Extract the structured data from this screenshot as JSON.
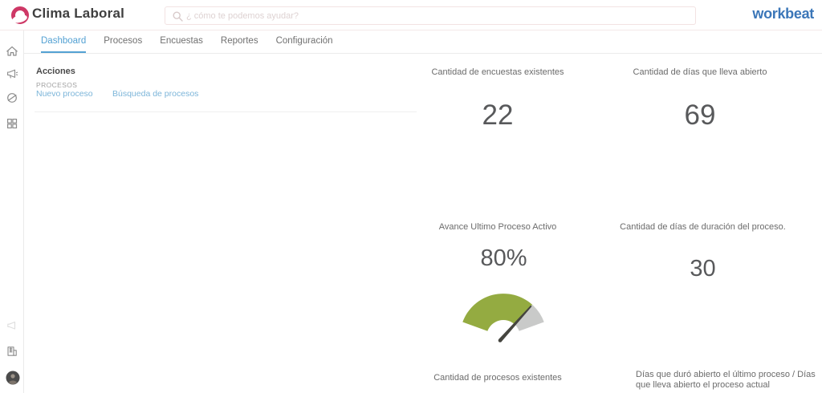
{
  "header": {
    "title": "Clima Laboral",
    "search_placeholder": "¿ cómo te podemos ayudar?",
    "brand": "workbeat"
  },
  "tabs": [
    {
      "label": "Dashboard",
      "active": true
    },
    {
      "label": "Procesos",
      "active": false
    },
    {
      "label": "Encuestas",
      "active": false
    },
    {
      "label": "Reportes",
      "active": false
    },
    {
      "label": "Configuración",
      "active": false
    }
  ],
  "sidebar": {
    "icons": [
      "home-icon",
      "megaphone-icon",
      "block-icon",
      "grid-icon",
      "faint-megaphone-icon",
      "building-icon",
      "user-avatar"
    ]
  },
  "actions_panel": {
    "title": "Acciones",
    "section_label": "PROCESOS",
    "links": [
      {
        "label": "Nuevo proceso"
      },
      {
        "label": "Búsqueda de procesos"
      }
    ]
  },
  "metrics": {
    "encuestas": {
      "label": "Cantidad de encuestas existentes",
      "value": "22"
    },
    "dias_abierto": {
      "label": "Cantidad de días que lleva abierto",
      "value": "69"
    },
    "avance": {
      "label": "Avance Ultimo Proceso Activo",
      "value": "80%"
    },
    "duracion": {
      "label": "Cantidad de días de duración del proceso.",
      "value": "30"
    },
    "procesos": {
      "label": "Cantidad de procesos existentes"
    },
    "dias_ratio": {
      "label": "Días que duró abierto el último proceso / Días que lleva abierto el proceso actual"
    }
  },
  "chart_data": {
    "type": "gauge",
    "title": "Avance Ultimo Proceso Activo",
    "value": 80,
    "max": 100,
    "unit": "%",
    "start_angle_deg": 160,
    "span_deg": 140,
    "colors": {
      "filled": "#94ab41",
      "empty": "#c9cac9",
      "needle": "#45453f"
    }
  },
  "colors": {
    "accent_blue": "#53a1d3",
    "brand_blue": "#3b76b8",
    "logo_pink": "#ce3866",
    "gauge_green": "#94ab41",
    "gauge_gray": "#c9cac9"
  }
}
